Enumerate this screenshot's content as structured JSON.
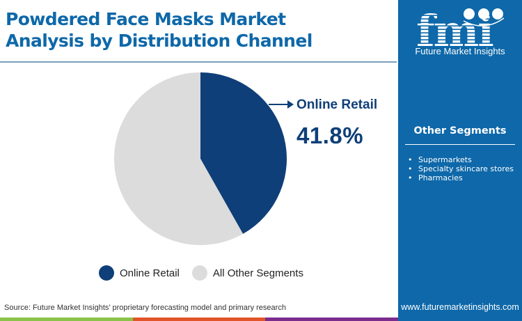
{
  "header": {
    "title_line1": "Powdered Face Masks Market",
    "title_line2": "Analysis by Distribution Channel"
  },
  "callout": {
    "label": "Online Retail",
    "value": "41.8%",
    "icon": "arrow-right-icon"
  },
  "legend": {
    "items": [
      {
        "label": "Online Retail",
        "color": "#0f3f78"
      },
      {
        "label": "All Other Segments",
        "color": "#dcdcdc"
      }
    ]
  },
  "sidebar": {
    "brand": "fmi",
    "brand_subtitle": "Future Market Insights",
    "heading": "Other Segments",
    "items": [
      "Supermarkets",
      "Specialty skincare stores",
      "Pharmacies"
    ],
    "url": "www.futuremarketinsights.com"
  },
  "footer": {
    "source": "Source: Future Market Insights’ proprietary forecasting model and primary research",
    "bar_colors": [
      "#8bc34a",
      "#e2552a",
      "#7b2d8e"
    ]
  },
  "colors": {
    "accent": "#0e68a9",
    "primary_slice": "#0f3f78",
    "secondary_slice": "#dcdcdc"
  },
  "chart_data": {
    "type": "pie",
    "title": "Powdered Face Masks Market Analysis by Distribution Channel",
    "categories": [
      "Online Retail",
      "All Other Segments"
    ],
    "values": [
      41.8,
      58.2
    ],
    "unit": "%",
    "colors": [
      "#0f3f78",
      "#dcdcdc"
    ],
    "start_angle_deg": 0,
    "direction": "clockwise",
    "annotations": [
      {
        "label": "Online Retail",
        "value": "41.8%"
      }
    ],
    "legend_position": "bottom"
  }
}
